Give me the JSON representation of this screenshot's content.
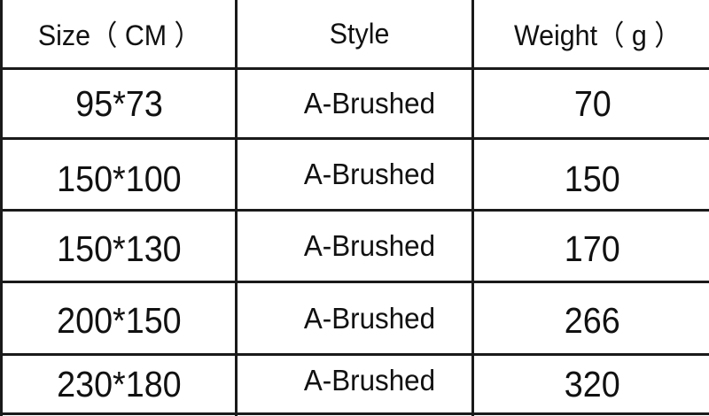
{
  "table": {
    "headers": [
      "Size（ CM ）",
      "Style",
      "Weight（ g ）"
    ],
    "rows": [
      [
        "95*73",
        "A-Brushed",
        "70"
      ],
      [
        "150*100",
        "A-Brushed",
        "150"
      ],
      [
        "150*130",
        "A-Brushed",
        "170"
      ],
      [
        "200*150",
        "A-Brushed",
        "266"
      ],
      [
        "230*180",
        "A-Brushed",
        "320"
      ]
    ]
  }
}
